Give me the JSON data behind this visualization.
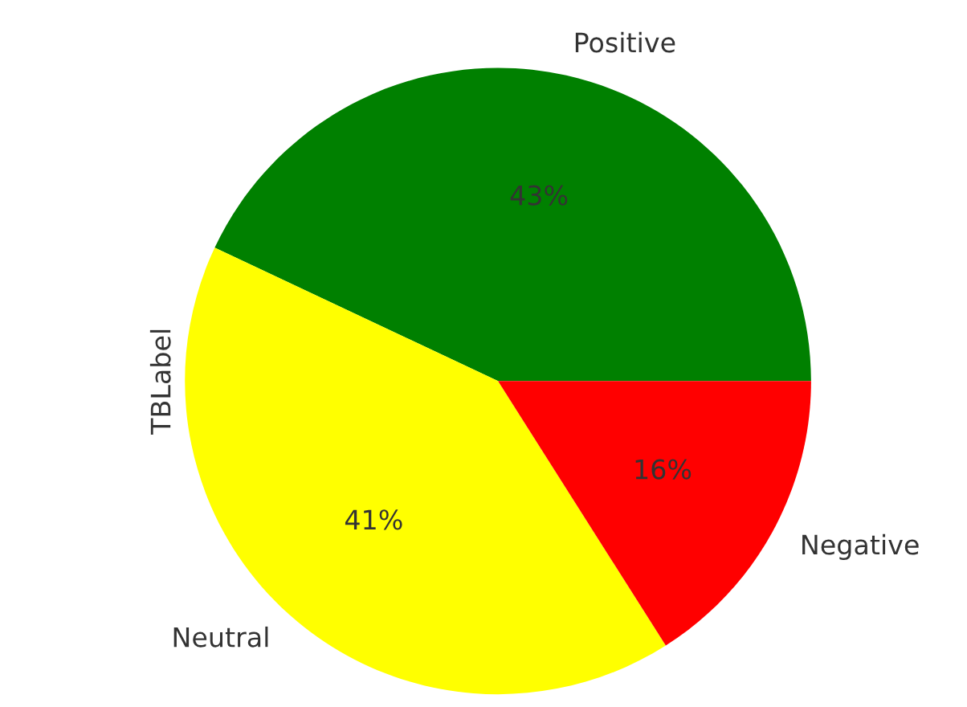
{
  "chart_data": {
    "type": "pie",
    "ylabel": "TBLabel",
    "categories": [
      "Positive",
      "Neutral",
      "Negative"
    ],
    "values": [
      43,
      41,
      16
    ],
    "colors": [
      "#008000",
      "#ffff00",
      "#ff0000"
    ],
    "value_labels": [
      "43%",
      "41%",
      "16%"
    ]
  }
}
